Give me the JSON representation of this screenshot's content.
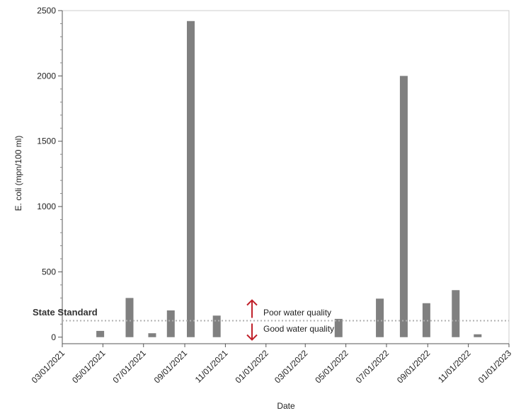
{
  "chart_data": {
    "type": "bar",
    "title": "",
    "xlabel": "Date",
    "ylabel": "E. coli (mpn/100 ml)",
    "x_ticks": [
      "03/01/2021",
      "05/01/2021",
      "07/01/2021",
      "09/01/2021",
      "11/01/2021",
      "01/01/2022",
      "03/01/2022",
      "05/01/2022",
      "07/01/2022",
      "09/01/2022",
      "11/01/2022",
      "01/01/2023"
    ],
    "xlim": [
      "2021-03-01",
      "2023-01-01"
    ],
    "ylim": [
      -50,
      2500
    ],
    "y_ticks": [
      0,
      500,
      1000,
      1500,
      2000,
      2500
    ],
    "y_tick_labels": [
      "0",
      "500",
      "1000",
      "1500",
      "2000",
      "2500"
    ],
    "bar_color": "#808080",
    "standard_line": {
      "label": "State Standard",
      "value": 126,
      "color": "#b0b0b0"
    },
    "annotations": {
      "up": "Poor water quality",
      "down": "Good water quality",
      "arrow_color": "#c0202a"
    },
    "grid": false,
    "values": [
      {
        "date": "2021-04-27",
        "value": 48
      },
      {
        "date": "2021-06-10",
        "value": 300
      },
      {
        "date": "2021-07-14",
        "value": 30
      },
      {
        "date": "2021-08-11",
        "value": 205
      },
      {
        "date": "2021-09-10",
        "value": 2420
      },
      {
        "date": "2021-10-19",
        "value": 165
      },
      {
        "date": "2022-04-20",
        "value": 140
      },
      {
        "date": "2022-06-21",
        "value": 295
      },
      {
        "date": "2022-07-27",
        "value": 2000
      },
      {
        "date": "2022-08-30",
        "value": 260
      },
      {
        "date": "2022-10-13",
        "value": 360
      },
      {
        "date": "2022-11-15",
        "value": 22
      }
    ]
  }
}
